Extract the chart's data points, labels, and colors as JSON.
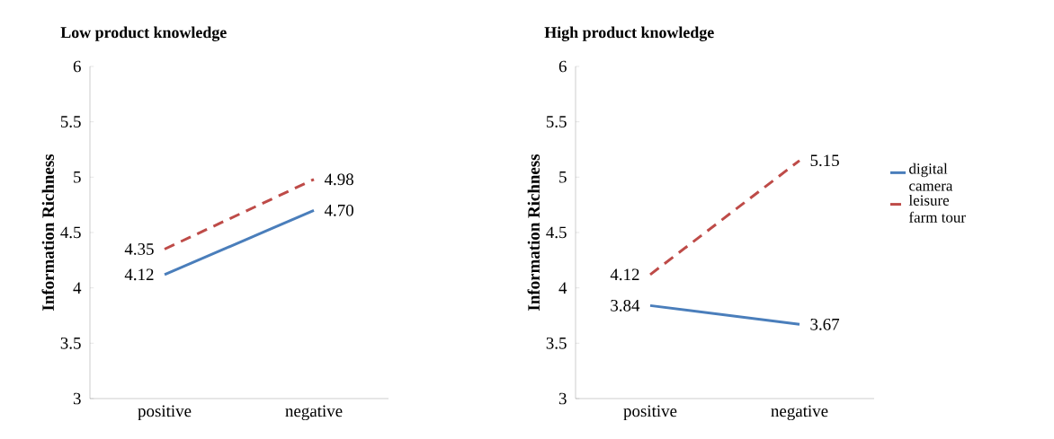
{
  "chart_data": [
    {
      "type": "line",
      "title": "Low product knowledge",
      "ylabel": "Information Richness",
      "categories": [
        "positive",
        "negative"
      ],
      "ylim": [
        3,
        6
      ],
      "yticks": [
        3,
        3.5,
        4,
        4.5,
        5,
        5.5,
        6
      ],
      "grid": false,
      "legend": false,
      "series": [
        {
          "color": "#4a7ebb",
          "line_style": "solid",
          "values": [
            4.12,
            4.7
          ],
          "value_labels": [
            "4.12",
            "4.70"
          ]
        },
        {
          "color": "#be4b48",
          "line_style": "dashed",
          "values": [
            4.35,
            4.98
          ],
          "value_labels": [
            "4.35",
            "4.98"
          ]
        }
      ]
    },
    {
      "type": "line",
      "title": "High product knowledge",
      "ylabel": "Information Richness",
      "categories": [
        "positive",
        "negative"
      ],
      "ylim": [
        3,
        6
      ],
      "yticks": [
        3,
        3.5,
        4,
        4.5,
        5,
        5.5,
        6
      ],
      "grid": false,
      "legend": "right",
      "series": [
        {
          "name": "digital camera",
          "color": "#4a7ebb",
          "line_style": "solid",
          "values": [
            3.84,
            3.67
          ],
          "value_labels": [
            "3.84",
            "3.67"
          ]
        },
        {
          "name": "leisure farm tour",
          "color": "#be4b48",
          "line_style": "dashed",
          "values": [
            4.12,
            5.15
          ],
          "value_labels": [
            "4.12",
            "5.15"
          ]
        }
      ]
    }
  ]
}
